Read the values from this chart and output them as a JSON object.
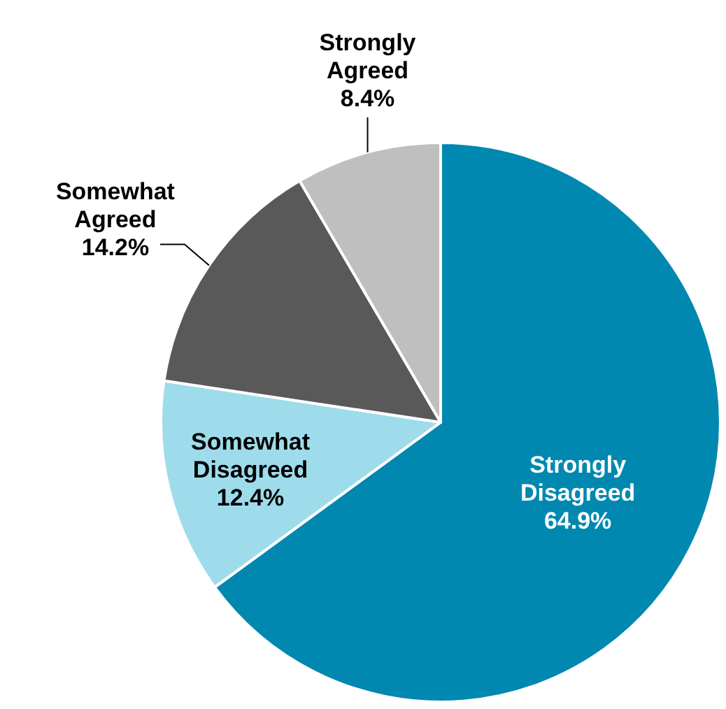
{
  "chart_data": {
    "type": "pie",
    "categories": [
      "Strongly Disagreed",
      "Somewhat Disagreed",
      "Somewhat Agreed",
      "Strongly Agreed"
    ],
    "values": [
      64.9,
      12.4,
      14.2,
      8.4
    ],
    "value_labels": [
      "64.9%",
      "12.4%",
      "14.2%",
      "8.4%"
    ],
    "colors": [
      "#0088b0",
      "#9edcec",
      "#595959",
      "#bfbfbf"
    ]
  }
}
